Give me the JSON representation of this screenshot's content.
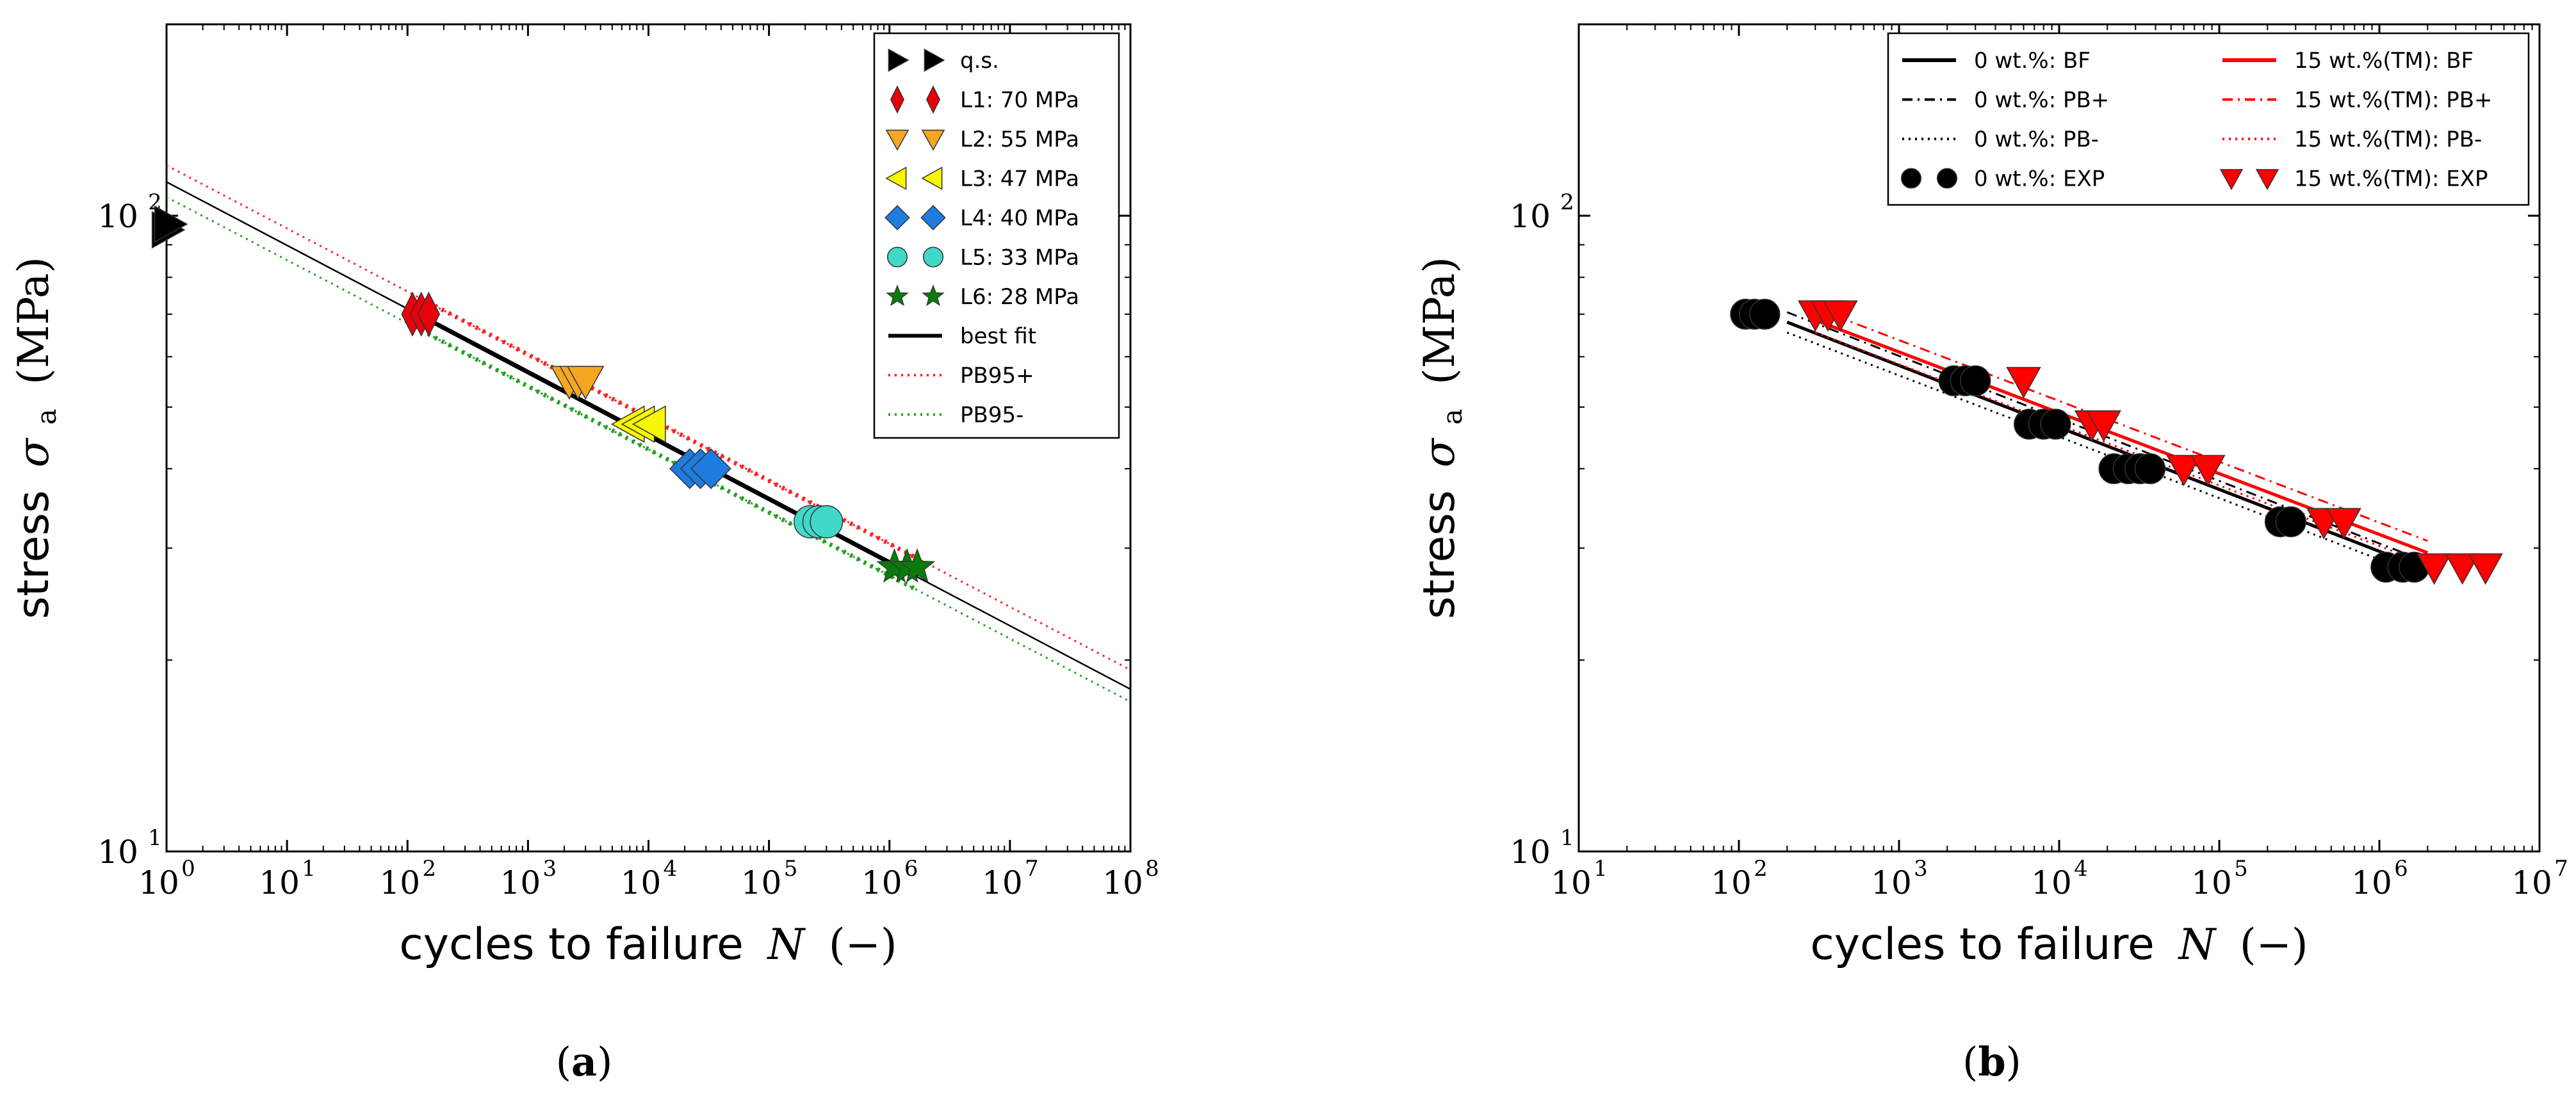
{
  "chart_data": [
    {
      "type": "scatter",
      "panel": "a",
      "caption_letter": "a",
      "xlabel_text": "cycles to failure",
      "xlabel_symbol": "N",
      "xlabel_unit": "(−)",
      "ylabel_text": "stress",
      "ylabel_symbol": "σ",
      "ylabel_subscript": "a",
      "ylabel_unit": "(MPa)",
      "xscale": "log",
      "yscale": "log",
      "xlim": [
        1,
        100000000
      ],
      "ylim": [
        10,
        200
      ],
      "x_tick_exponents": [
        "0",
        "1",
        "2",
        "3",
        "4",
        "5",
        "6",
        "7",
        "8"
      ],
      "y_tick_exponents": [
        "1",
        "2"
      ],
      "tick_base": "10",
      "legend_position": "upper-right",
      "series": [
        {
          "name": "q.s.",
          "marker": "triangle-right",
          "color": "#000000",
          "points": [
            [
              1.0,
              95
            ],
            [
              1.05,
              97
            ]
          ]
        },
        {
          "name": "L1: 70 MPa",
          "marker": "thin-diamond",
          "color": "#e8000b",
          "points": [
            [
              110,
              70
            ],
            [
              130,
              70
            ],
            [
              150,
              70
            ]
          ]
        },
        {
          "name": "L2: 55 MPa",
          "marker": "triangle-down",
          "color": "#f5a623",
          "points": [
            [
              2200,
              55
            ],
            [
              2600,
              55
            ],
            [
              3000,
              55
            ]
          ]
        },
        {
          "name": "L3: 47 MPa",
          "marker": "triangle-left",
          "color": "#f7f700",
          "points": [
            [
              7000,
              47
            ],
            [
              8500,
              47
            ],
            [
              10500,
              47
            ]
          ]
        },
        {
          "name": "L4: 40 MPa",
          "marker": "diamond",
          "color": "#1e7be0",
          "points": [
            [
              22000,
              40
            ],
            [
              27000,
              40
            ],
            [
              33000,
              40
            ]
          ]
        },
        {
          "name": "L5: 33 MPa",
          "marker": "circle",
          "color": "#40d8c8",
          "points": [
            [
              220000,
              33
            ],
            [
              260000,
              33
            ],
            [
              300000,
              33
            ]
          ]
        },
        {
          "name": "L6: 28 MPa",
          "marker": "star",
          "color": "#0a7a0a",
          "points": [
            [
              1100000,
              28
            ],
            [
              1400000,
              28
            ],
            [
              1700000,
              28
            ]
          ]
        }
      ],
      "lines": [
        {
          "name": "best fit",
          "style": "solid",
          "color": "#000000",
          "from": [
            1,
            113
          ],
          "to": [
            100000000,
            18
          ]
        },
        {
          "name": "PB95+",
          "style": "dotted",
          "color": "#ff2020",
          "from": [
            1,
            120
          ],
          "to": [
            100000000,
            19.3
          ]
        },
        {
          "name": "PB95-",
          "style": "dotted",
          "color": "#22a022",
          "from": [
            1,
            107
          ],
          "to": [
            100000000,
            17.2
          ]
        }
      ]
    },
    {
      "type": "scatter",
      "panel": "b",
      "caption_letter": "b",
      "xlabel_text": "cycles to failure",
      "xlabel_symbol": "N",
      "xlabel_unit": "(−)",
      "ylabel_text": "stress",
      "ylabel_symbol": "σ",
      "ylabel_subscript": "a",
      "ylabel_unit": "(MPa)",
      "xscale": "log",
      "yscale": "log",
      "xlim": [
        10,
        10000000
      ],
      "ylim": [
        10,
        200
      ],
      "x_tick_exponents": [
        "1",
        "2",
        "3",
        "4",
        "5",
        "6",
        "7"
      ],
      "y_tick_exponents": [
        "1",
        "2"
      ],
      "tick_base": "10",
      "legend_position": "upper-right",
      "legend_columns": 2,
      "series": [
        {
          "name": "0 wt.%: EXP",
          "marker": "circle",
          "color": "#000000",
          "points": [
            [
              110,
              70
            ],
            [
              125,
              70
            ],
            [
              145,
              70
            ],
            [
              2200,
              55
            ],
            [
              2600,
              55
            ],
            [
              3000,
              55
            ],
            [
              6500,
              47
            ],
            [
              8000,
              47
            ],
            [
              9500,
              47
            ],
            [
              22000,
              40
            ],
            [
              27000,
              40
            ],
            [
              32000,
              40
            ],
            [
              37000,
              40
            ],
            [
              240000,
              33
            ],
            [
              280000,
              33
            ],
            [
              1100000,
              28
            ],
            [
              1400000,
              28
            ],
            [
              1650000,
              28
            ]
          ]
        },
        {
          "name": "15 wt.%(TM): EXP",
          "marker": "triangle-down",
          "color": "#ff0000",
          "points": [
            [
              300,
              70
            ],
            [
              360,
              70
            ],
            [
              430,
              70
            ],
            [
              6000,
              55
            ],
            [
              16000,
              47
            ],
            [
              19000,
              47
            ],
            [
              60000,
              40
            ],
            [
              85000,
              40
            ],
            [
              450000,
              33
            ],
            [
              600000,
              33
            ],
            [
              2200000,
              28
            ],
            [
              3300000,
              28
            ],
            [
              4600000,
              28
            ]
          ]
        }
      ],
      "lines": [
        {
          "name": "0 wt.%: BF",
          "style": "solid",
          "color": "#000000",
          "from": [
            200,
            68
          ],
          "to": [
            1800000,
            28
          ]
        },
        {
          "name": "0 wt.%: PB+",
          "style": "dashdot",
          "color": "#000000",
          "from": [
            200,
            70.5
          ],
          "to": [
            1800000,
            28.8
          ]
        },
        {
          "name": "0 wt.%: PB-",
          "style": "dotted",
          "color": "#000000",
          "from": [
            200,
            65.5
          ],
          "to": [
            1800000,
            27.2
          ]
        },
        {
          "name": "15 wt.%(TM): BF",
          "style": "solid",
          "color": "#ff0000",
          "from": [
            300,
            68.5
          ],
          "to": [
            2000000,
            29.5
          ]
        },
        {
          "name": "15 wt.%(TM): PB+",
          "style": "dashdot",
          "color": "#ff0000",
          "from": [
            300,
            71.5
          ],
          "to": [
            2000000,
            30.8
          ]
        },
        {
          "name": "15 wt.%(TM): PB-",
          "style": "dotted",
          "color": "#ff0000",
          "from": [
            300,
            65.5
          ],
          "to": [
            2000000,
            28.3
          ]
        }
      ]
    }
  ]
}
